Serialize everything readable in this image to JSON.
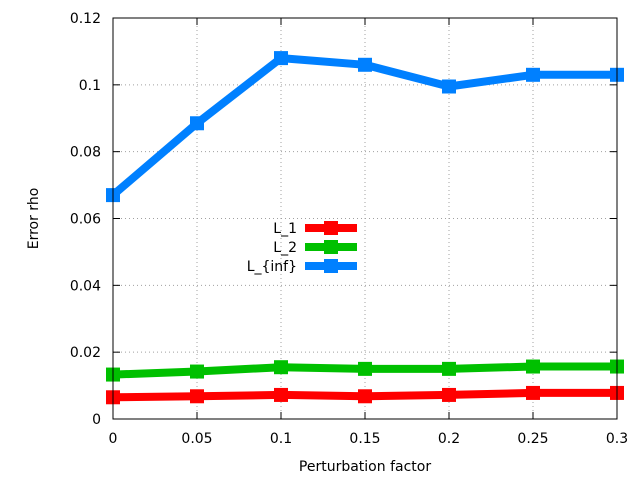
{
  "chart_data": {
    "type": "line",
    "xlabel": "Perturbation factor",
    "ylabel": "Error rho",
    "xlim": [
      0,
      0.3
    ],
    "ylim": [
      0,
      0.12
    ],
    "xticks": [
      0,
      0.05,
      0.1,
      0.15,
      0.2,
      0.25,
      0.3
    ],
    "yticks": [
      0,
      0.02,
      0.04,
      0.06,
      0.08,
      0.1,
      0.12
    ],
    "grid": true,
    "legend_position": "center-left",
    "x": [
      0,
      0.05,
      0.1,
      0.15,
      0.2,
      0.25,
      0.3
    ],
    "series": [
      {
        "name": "L_1",
        "color": "#ff0000",
        "values": [
          0.0065,
          0.0068,
          0.0072,
          0.0068,
          0.0072,
          0.0078,
          0.0078
        ]
      },
      {
        "name": "L_2",
        "color": "#00c000",
        "values": [
          0.0133,
          0.0142,
          0.0155,
          0.015,
          0.015,
          0.0157,
          0.0157
        ]
      },
      {
        "name": "L_{inf}",
        "color": "#0080ff",
        "values": [
          0.067,
          0.0885,
          0.108,
          0.106,
          0.0995,
          0.103,
          0.103
        ]
      }
    ]
  }
}
